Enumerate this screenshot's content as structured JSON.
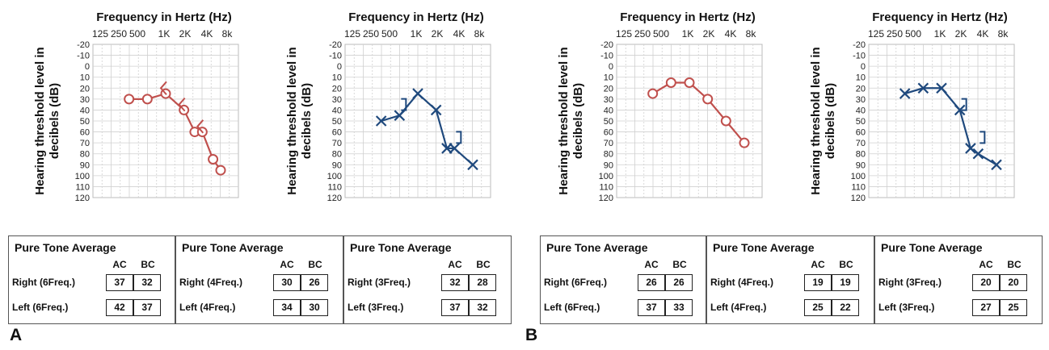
{
  "panel_labels": [
    "A",
    "B"
  ],
  "chart_data": [
    {
      "type": "line",
      "panel": "A",
      "ear": "right",
      "title": "Frequency in Hertz (Hz)",
      "ylabel": "Hearing threshold level in decibels (dB)",
      "xticks": [
        "125",
        "250",
        "500",
        "1K",
        "2K",
        "4K",
        "8k"
      ],
      "yticks": [
        "-20",
        "-10",
        "0",
        "10",
        "20",
        "30",
        "40",
        "50",
        "60",
        "70",
        "80",
        "90",
        "100",
        "110",
        "120"
      ],
      "ylim": [
        -20,
        120
      ],
      "color": "#c0504d",
      "series": [
        {
          "name": "AC",
          "symbol": "circle",
          "points": [
            [
              250,
              30
            ],
            [
              500,
              30
            ],
            [
              1000,
              25
            ],
            [
              2000,
              40
            ],
            [
              3000,
              60
            ],
            [
              4000,
              60
            ],
            [
              6000,
              85
            ],
            [
              8000,
              95
            ]
          ]
        },
        {
          "name": "BC",
          "symbol": "less-than",
          "points": [
            [
              1000,
              20
            ],
            [
              2000,
              35
            ],
            [
              4000,
              55
            ]
          ]
        }
      ]
    },
    {
      "type": "line",
      "panel": "A",
      "ear": "left",
      "title": "Frequency in Hertz (Hz)",
      "ylabel": "Hearing threshold level in decibels (dB)",
      "xticks": [
        "125",
        "250",
        "500",
        "1K",
        "2K",
        "4K",
        "8k"
      ],
      "yticks": [
        "-20",
        "-10",
        "0",
        "10",
        "20",
        "30",
        "40",
        "50",
        "60",
        "70",
        "80",
        "90",
        "100",
        "110",
        "120"
      ],
      "ylim": [
        -20,
        120
      ],
      "color": "#1f497d",
      "series": [
        {
          "name": "AC",
          "symbol": "x",
          "points": [
            [
              250,
              50
            ],
            [
              500,
              45
            ],
            [
              1000,
              25
            ],
            [
              2000,
              40
            ],
            [
              3000,
              75
            ],
            [
              4000,
              75
            ],
            [
              8000,
              90
            ]
          ]
        },
        {
          "name": "BC",
          "symbol": "bracket",
          "points": [
            [
              500,
              35
            ],
            [
              4000,
              65
            ]
          ]
        }
      ]
    },
    {
      "type": "line",
      "panel": "B",
      "ear": "right",
      "title": "Frequency in Hertz (Hz)",
      "ylabel": "Hearing threshold level in decibels (dB)",
      "xticks": [
        "125",
        "250",
        "500",
        "1K",
        "2K",
        "4K",
        "8k"
      ],
      "yticks": [
        "-20",
        "-10",
        "0",
        "10",
        "20",
        "30",
        "40",
        "50",
        "60",
        "70",
        "80",
        "90",
        "100",
        "110",
        "120"
      ],
      "ylim": [
        -20,
        120
      ],
      "color": "#c0504d",
      "series": [
        {
          "name": "AC",
          "symbol": "circle",
          "points": [
            [
              250,
              25
            ],
            [
              500,
              15
            ],
            [
              1000,
              15
            ],
            [
              2000,
              30
            ],
            [
              4000,
              50
            ],
            [
              8000,
              70
            ]
          ]
        },
        {
          "name": "BC",
          "symbol": "less-than",
          "points": []
        }
      ]
    },
    {
      "type": "line",
      "panel": "B",
      "ear": "left",
      "title": "Frequency in Hertz (Hz)",
      "ylabel": "Hearing threshold level in decibels (dB)",
      "xticks": [
        "125",
        "250",
        "500",
        "1K",
        "2K",
        "4K",
        "8k"
      ],
      "yticks": [
        "-20",
        "-10",
        "0",
        "10",
        "20",
        "30",
        "40",
        "50",
        "60",
        "70",
        "80",
        "90",
        "100",
        "110",
        "120"
      ],
      "ylim": [
        -20,
        120
      ],
      "color": "#1f497d",
      "series": [
        {
          "name": "AC",
          "symbol": "x",
          "points": [
            [
              250,
              25
            ],
            [
              500,
              20
            ],
            [
              1000,
              20
            ],
            [
              2000,
              40
            ],
            [
              3000,
              75
            ],
            [
              4000,
              80
            ],
            [
              8000,
              90
            ]
          ]
        },
        {
          "name": "BC",
          "symbol": "bracket",
          "points": [
            [
              2000,
              35
            ],
            [
              4000,
              65
            ]
          ]
        }
      ]
    }
  ],
  "pta_tables": [
    {
      "panel": "A",
      "title": "Pure Tone Average",
      "ac": "AC",
      "bc": "BC",
      "rows": [
        {
          "label": "Right (6Freq.)",
          "ac": "37",
          "bc": "32"
        },
        {
          "label": "Left (6Freq.)",
          "ac": "42",
          "bc": "37"
        }
      ]
    },
    {
      "panel": "A",
      "title": "Pure Tone Average",
      "ac": "AC",
      "bc": "BC",
      "rows": [
        {
          "label": "Right (4Freq.)",
          "ac": "30",
          "bc": "26"
        },
        {
          "label": "Left (4Freq.)",
          "ac": "34",
          "bc": "30"
        }
      ]
    },
    {
      "panel": "A",
      "title": "Pure Tone Average",
      "ac": "AC",
      "bc": "BC",
      "rows": [
        {
          "label": "Right (3Freq.)",
          "ac": "32",
          "bc": "28"
        },
        {
          "label": "Left (3Freq.)",
          "ac": "37",
          "bc": "32"
        }
      ]
    },
    {
      "panel": "B",
      "title": "Pure Tone Average",
      "ac": "AC",
      "bc": "BC",
      "rows": [
        {
          "label": "Right (6Freq.)",
          "ac": "26",
          "bc": "26"
        },
        {
          "label": "Left (6Freq.)",
          "ac": "37",
          "bc": "33"
        }
      ]
    },
    {
      "panel": "B",
      "title": "Pure Tone Average",
      "ac": "AC",
      "bc": "BC",
      "rows": [
        {
          "label": "Right (4Freq.)",
          "ac": "19",
          "bc": "19"
        },
        {
          "label": "Left (4Freq.)",
          "ac": "25",
          "bc": "22"
        }
      ]
    },
    {
      "panel": "B",
      "title": "Pure Tone Average",
      "ac": "AC",
      "bc": "BC",
      "rows": [
        {
          "label": "Right (3Freq.)",
          "ac": "20",
          "bc": "20"
        },
        {
          "label": "Left (3Freq.)",
          "ac": "27",
          "bc": "25"
        }
      ]
    }
  ]
}
